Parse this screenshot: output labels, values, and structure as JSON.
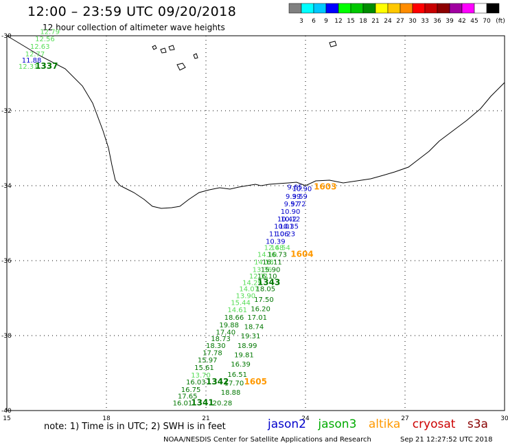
{
  "title": "12:00 – 23:59 UTC 09/20/2018",
  "subtitle": "12 hour collection of altimeter wave heights",
  "colorbar": {
    "unit": "(ft)",
    "ticks": [
      "3",
      "6",
      "9",
      "12",
      "15",
      "18",
      "21",
      "24",
      "27",
      "30",
      "33",
      "36",
      "39",
      "42",
      "45",
      "70"
    ],
    "colors": [
      "#808080",
      "#00ffff",
      "#00c8ff",
      "#0000ff",
      "#00ff00",
      "#00c800",
      "#008c00",
      "#ffff00",
      "#ffc800",
      "#ff8c00",
      "#ff0000",
      "#c80000",
      "#8c0000",
      "#a000a0",
      "#ff00ff",
      "#ffffff",
      "#000000"
    ]
  },
  "axes": {
    "x_ticks": [
      "15",
      "18",
      "21",
      "24",
      "27",
      "30"
    ],
    "y_ticks": [
      "-30",
      "-32",
      "-34",
      "-36",
      "-38",
      "-40"
    ]
  },
  "legend": {
    "jason2": {
      "label": "jason2",
      "color": "#0000cc"
    },
    "jason3": {
      "label": "jason3",
      "color": "#00aa00"
    },
    "altika": {
      "label": "altika",
      "color": "#ff9900"
    },
    "cryosat": {
      "label": "cryosat",
      "color": "#cc0000"
    },
    "s3a": {
      "label": "s3a",
      "color": "#880000"
    }
  },
  "note": "note:  1) Time is in UTC;  2) SWH is in feet",
  "credit": "NOAA/NESDIS Center for Satellite Applications and Research",
  "credit_time": "Sep 21 12:27:52 UTC 2018",
  "labels": [
    {
      "t": "12.79",
      "lon": 16.0,
      "lat": -29.95,
      "c": "#55dd55"
    },
    {
      "t": "12.56",
      "lon": 15.85,
      "lat": -30.15,
      "c": "#55dd55"
    },
    {
      "t": "12.63",
      "lon": 15.7,
      "lat": -30.35,
      "c": "#55dd55"
    },
    {
      "t": "12.77",
      "lon": 15.55,
      "lat": -30.55,
      "c": "#55dd55"
    },
    {
      "t": "11.88",
      "lon": 15.45,
      "lat": -30.72,
      "c": "#0000cc"
    },
    {
      "t": "12.31",
      "lon": 15.35,
      "lat": -30.88,
      "c": "#55dd55"
    },
    {
      "t": "1337",
      "lon": 15.85,
      "lat": -30.88,
      "c": "#007700",
      "b": 1
    },
    {
      "t": "9.85",
      "lon": 23.45,
      "lat": -34.1,
      "c": "#0000cc"
    },
    {
      "t": "10.90",
      "lon": 23.6,
      "lat": -34.15,
      "c": "#0000cc"
    },
    {
      "t": "1603",
      "lon": 24.25,
      "lat": -34.1,
      "c": "#ff9900",
      "b": 1
    },
    {
      "t": "9.39",
      "lon": 23.4,
      "lat": -34.35,
      "c": "#0000cc"
    },
    {
      "t": "9.59",
      "lon": 23.6,
      "lat": -34.35,
      "c": "#0000cc"
    },
    {
      "t": "9.57",
      "lon": 23.35,
      "lat": -34.55,
      "c": "#0000cc"
    },
    {
      "t": "9.72",
      "lon": 23.55,
      "lat": -34.55,
      "c": "#0000cc"
    },
    {
      "t": "10.90",
      "lon": 23.25,
      "lat": -34.75,
      "c": "#0000cc"
    },
    {
      "t": "10.42",
      "lon": 23.15,
      "lat": -34.95,
      "c": "#0000cc"
    },
    {
      "t": "10.12",
      "lon": 23.25,
      "lat": -34.95,
      "c": "#0000cc"
    },
    {
      "t": "10.01",
      "lon": 23.05,
      "lat": -35.15,
      "c": "#0000cc"
    },
    {
      "t": "10.35",
      "lon": 23.2,
      "lat": -35.15,
      "c": "#0000cc"
    },
    {
      "t": "11.06",
      "lon": 22.9,
      "lat": -35.35,
      "c": "#0000cc"
    },
    {
      "t": "10.23",
      "lon": 23.1,
      "lat": -35.35,
      "c": "#0000cc"
    },
    {
      "t": "10.39",
      "lon": 22.8,
      "lat": -35.55,
      "c": "#0000cc"
    },
    {
      "t": "12.68",
      "lon": 22.75,
      "lat": -35.72,
      "c": "#55dd55"
    },
    {
      "t": "14.54",
      "lon": 22.95,
      "lat": -35.72,
      "c": "#55dd55"
    },
    {
      "t": "14.10",
      "lon": 22.55,
      "lat": -35.9,
      "c": "#55dd55"
    },
    {
      "t": "16.73",
      "lon": 22.85,
      "lat": -35.9,
      "c": "#007700"
    },
    {
      "t": "1604",
      "lon": 23.55,
      "lat": -35.9,
      "c": "#ff9900",
      "b": 1
    },
    {
      "t": "14.18",
      "lon": 22.45,
      "lat": -36.1,
      "c": "#55dd55"
    },
    {
      "t": "16.11",
      "lon": 22.7,
      "lat": -36.1,
      "c": "#007700"
    },
    {
      "t": "13.36",
      "lon": 22.4,
      "lat": -36.3,
      "c": "#55dd55"
    },
    {
      "t": "15.90",
      "lon": 22.65,
      "lat": -36.3,
      "c": "#007700"
    },
    {
      "t": "12.31",
      "lon": 22.3,
      "lat": -36.48,
      "c": "#55dd55"
    },
    {
      "t": "16.10",
      "lon": 22.55,
      "lat": -36.48,
      "c": "#007700"
    },
    {
      "t": "14.29",
      "lon": 22.1,
      "lat": -36.65,
      "c": "#55dd55"
    },
    {
      "t": "1343",
      "lon": 22.55,
      "lat": -36.65,
      "c": "#007700",
      "b": 1
    },
    {
      "t": "14.07",
      "lon": 22.0,
      "lat": -36.82,
      "c": "#55dd55"
    },
    {
      "t": "18.05",
      "lon": 22.5,
      "lat": -36.82,
      "c": "#007700"
    },
    {
      "t": "13.90",
      "lon": 21.9,
      "lat": -37.0,
      "c": "#55dd55"
    },
    {
      "t": "17.50",
      "lon": 22.45,
      "lat": -37.1,
      "c": "#007700"
    },
    {
      "t": "15.44",
      "lon": 21.75,
      "lat": -37.18,
      "c": "#55dd55"
    },
    {
      "t": "14.61",
      "lon": 21.65,
      "lat": -37.38,
      "c": "#55dd55"
    },
    {
      "t": "16.20",
      "lon": 22.35,
      "lat": -37.35,
      "c": "#007700"
    },
    {
      "t": "18.66",
      "lon": 21.55,
      "lat": -37.58,
      "c": "#007700"
    },
    {
      "t": "17.01",
      "lon": 22.25,
      "lat": -37.58,
      "c": "#007700"
    },
    {
      "t": "19.88",
      "lon": 21.4,
      "lat": -37.78,
      "c": "#007700"
    },
    {
      "t": "18.74",
      "lon": 22.15,
      "lat": -37.83,
      "c": "#007700"
    },
    {
      "t": "17.40",
      "lon": 21.3,
      "lat": -37.97,
      "c": "#007700"
    },
    {
      "t": "18.73",
      "lon": 21.15,
      "lat": -38.15,
      "c": "#007700"
    },
    {
      "t": "19.31",
      "lon": 22.05,
      "lat": -38.07,
      "c": "#007700"
    },
    {
      "t": "18.30",
      "lon": 21.0,
      "lat": -38.33,
      "c": "#007700"
    },
    {
      "t": "18.99",
      "lon": 21.95,
      "lat": -38.33,
      "c": "#007700"
    },
    {
      "t": "17.78",
      "lon": 20.9,
      "lat": -38.52,
      "c": "#007700"
    },
    {
      "t": "19.81",
      "lon": 21.85,
      "lat": -38.58,
      "c": "#007700"
    },
    {
      "t": "15.97",
      "lon": 20.75,
      "lat": -38.72,
      "c": "#007700"
    },
    {
      "t": "16.39",
      "lon": 21.75,
      "lat": -38.83,
      "c": "#007700"
    },
    {
      "t": "15.61",
      "lon": 20.65,
      "lat": -38.92,
      "c": "#007700"
    },
    {
      "t": "13.70",
      "lon": 20.55,
      "lat": -39.12,
      "c": "#55dd55"
    },
    {
      "t": "16.51",
      "lon": 21.65,
      "lat": -39.1,
      "c": "#007700"
    },
    {
      "t": "16.03",
      "lon": 20.4,
      "lat": -39.3,
      "c": "#007700"
    },
    {
      "t": "1342",
      "lon": 21.0,
      "lat": -39.3,
      "c": "#007700",
      "b": 1
    },
    {
      "t": "17.70",
      "lon": 21.55,
      "lat": -39.33,
      "c": "#007700"
    },
    {
      "t": "1605",
      "lon": 22.15,
      "lat": -39.3,
      "c": "#ff9900",
      "b": 1
    },
    {
      "t": "16.75",
      "lon": 20.25,
      "lat": -39.5,
      "c": "#007700"
    },
    {
      "t": "18.88",
      "lon": 21.45,
      "lat": -39.58,
      "c": "#007700"
    },
    {
      "t": "17.65",
      "lon": 20.15,
      "lat": -39.68,
      "c": "#007700"
    },
    {
      "t": "16.01",
      "lon": 20.0,
      "lat": -39.86,
      "c": "#007700"
    },
    {
      "t": "1341",
      "lon": 20.55,
      "lat": -39.86,
      "c": "#007700",
      "b": 1
    },
    {
      "t": "20.28",
      "lon": 21.2,
      "lat": -39.86,
      "c": "#007700"
    }
  ]
}
